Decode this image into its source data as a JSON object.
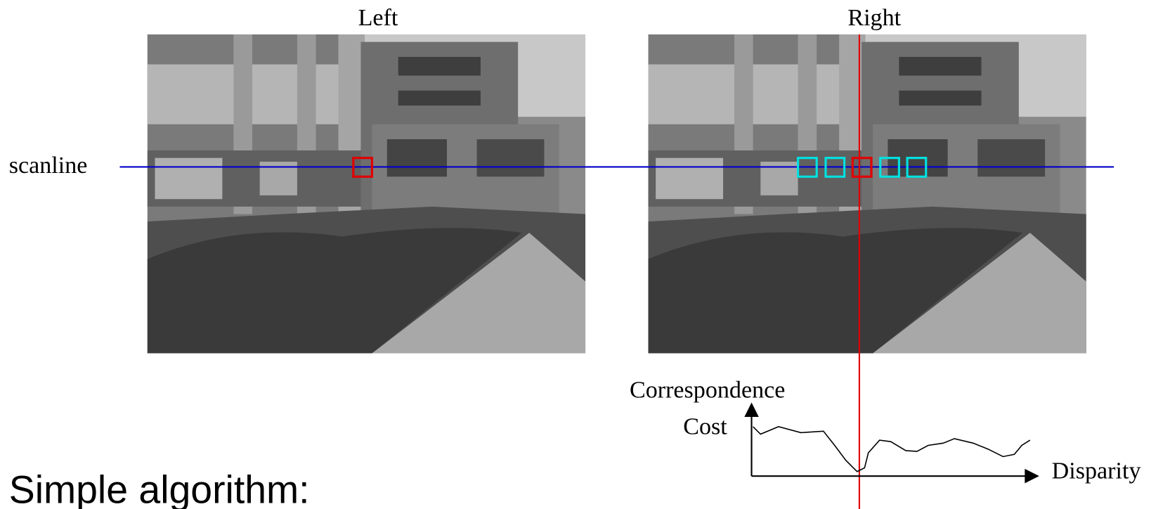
{
  "images": {
    "left": {
      "title": "Left"
    },
    "right": {
      "title": "Right"
    }
  },
  "scanline_label": "scanline",
  "cost_plot": {
    "y_label_line1": "Correspondence",
    "y_label_line2": "Cost",
    "x_label": "Disparity"
  },
  "heading": "Simple algorithm:"
}
